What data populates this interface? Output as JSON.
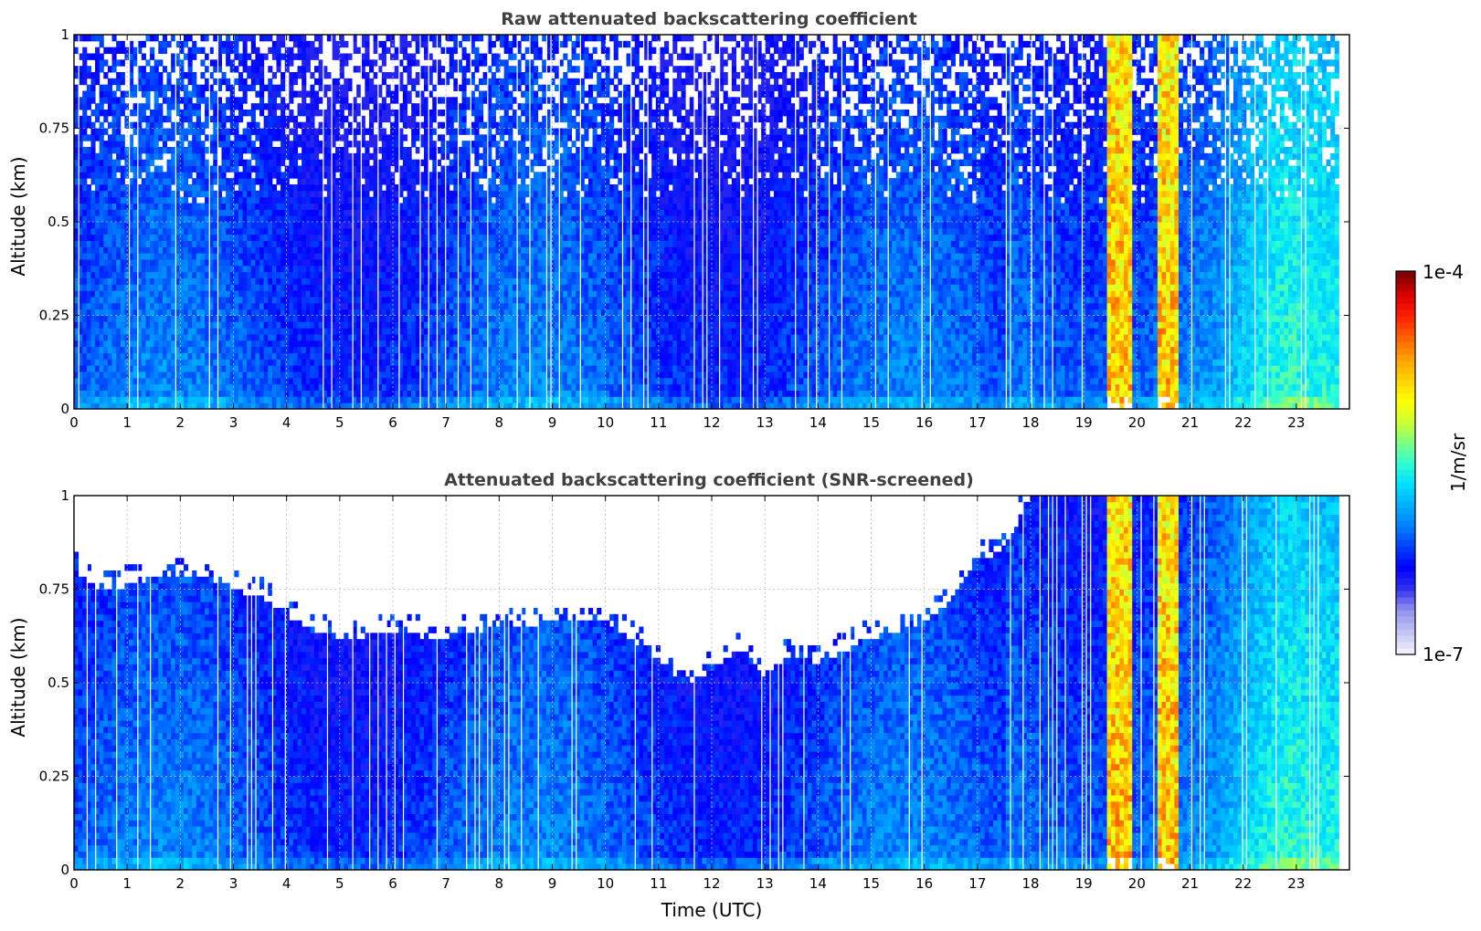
{
  "chart_data": [
    {
      "type": "heatmap",
      "title": "Raw attenuated backscattering coefficient",
      "ylabel": "Altitude (km)",
      "xlabel": "",
      "xlim": [
        0,
        24
      ],
      "ylim": [
        0,
        1
      ],
      "x_ticks": [
        0,
        1,
        2,
        3,
        4,
        5,
        6,
        7,
        8,
        9,
        10,
        11,
        12,
        13,
        14,
        15,
        16,
        17,
        18,
        19,
        20,
        21,
        22,
        23
      ],
      "y_ticks": [
        0,
        0.25,
        0.5,
        0.75,
        1
      ],
      "y_tick_labels": [
        "0",
        "0.25",
        "0.5",
        "0.75",
        "1"
      ],
      "grid": true,
      "data_end_hour": 23.8,
      "screened": false,
      "high_signal_bands_hours": [
        [
          19.4,
          19.9
        ],
        [
          20.4,
          20.75
        ]
      ]
    },
    {
      "type": "heatmap",
      "title": "Attenuated backscattering coefficient (SNR-screened)",
      "ylabel": "Altitude (km)",
      "xlabel": "Time (UTC)",
      "xlim": [
        0,
        24
      ],
      "ylim": [
        0,
        1
      ],
      "x_ticks": [
        0,
        1,
        2,
        3,
        4,
        5,
        6,
        7,
        8,
        9,
        10,
        11,
        12,
        13,
        14,
        15,
        16,
        17,
        18,
        19,
        20,
        21,
        22,
        23
      ],
      "y_ticks": [
        0,
        0.25,
        0.5,
        0.75,
        1
      ],
      "y_tick_labels": [
        "0",
        "0.25",
        "0.5",
        "0.75",
        "1"
      ],
      "grid": true,
      "data_end_hour": 23.8,
      "screened": true,
      "signal_top_km": [
        [
          0,
          0.8
        ],
        [
          0.5,
          0.75
        ],
        [
          1,
          0.76
        ],
        [
          1.5,
          0.78
        ],
        [
          2,
          0.79
        ],
        [
          2.5,
          0.78
        ],
        [
          3,
          0.75
        ],
        [
          3.5,
          0.73
        ],
        [
          4,
          0.68
        ],
        [
          4.5,
          0.64
        ],
        [
          5,
          0.62
        ],
        [
          6,
          0.63
        ],
        [
          7,
          0.62
        ],
        [
          8,
          0.65
        ],
        [
          9,
          0.66
        ],
        [
          10,
          0.67
        ],
        [
          11,
          0.56
        ],
        [
          11.5,
          0.5
        ],
        [
          12,
          0.53
        ],
        [
          12.5,
          0.59
        ],
        [
          13,
          0.52
        ],
        [
          13.5,
          0.58
        ],
        [
          14,
          0.55
        ],
        [
          15,
          0.62
        ],
        [
          16,
          0.66
        ],
        [
          16.5,
          0.72
        ],
        [
          17,
          0.82
        ],
        [
          17.5,
          0.86
        ],
        [
          18,
          1.0
        ],
        [
          23.8,
          1.0
        ]
      ],
      "high_signal_bands_hours": [
        [
          19.4,
          19.9
        ],
        [
          20.4,
          20.75
        ]
      ]
    }
  ],
  "colorbar": {
    "label": "1/m/sr",
    "max_label": "1e-4",
    "min_label": "1e-7",
    "colors": [
      "#eeeeff",
      "#c0c0f2",
      "#9090ee",
      "#3030ee",
      "#0000ff",
      "#0040ff",
      "#0080ff",
      "#00b0ff",
      "#00e0ff",
      "#30ffd0",
      "#80ff80",
      "#d0ff30",
      "#ffff00",
      "#ffd000",
      "#ffa000",
      "#ff6000",
      "#ff2000",
      "#dd0000",
      "#800000"
    ]
  }
}
